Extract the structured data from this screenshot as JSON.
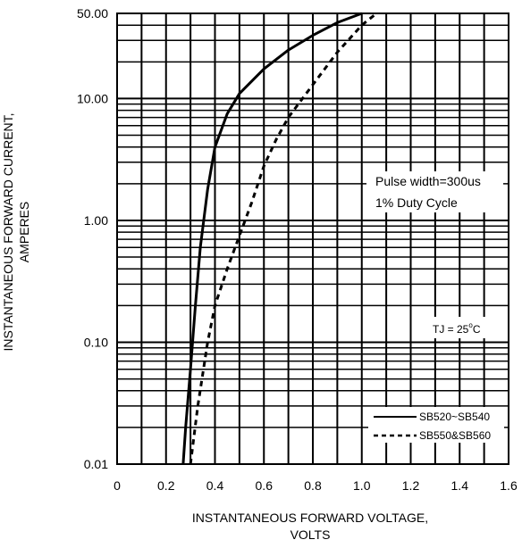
{
  "chart_data": {
    "type": "line",
    "xlabel": [
      "INSTANTANEOUS FORWARD VOLTAGE,",
      "VOLTS"
    ],
    "ylabel": [
      "INSTANTANEOUS FORWARD CURRENT,",
      "AMPERES"
    ],
    "xlim": [
      0,
      1.6
    ],
    "ylim": [
      0.01,
      50
    ],
    "yscale": "log",
    "grid": true,
    "x_ticks": [
      "0",
      "0.2",
      "0.4",
      "0.6",
      "0.8",
      "1.0",
      "1.2",
      "1.4",
      "1.6"
    ],
    "y_ticks": [
      "0.01",
      "0.10",
      "1.00",
      "10.00",
      "50.00"
    ],
    "annotations": {
      "pulse": "Pulse width=300us",
      "duty": "1% Duty Cycle",
      "tj_main": "TJ = 25",
      "tj_sup": "o",
      "tj_unit": "C"
    },
    "legend_position": "bottom-right",
    "series": [
      {
        "name": "SB520~SB540",
        "style": "solid",
        "x": [
          0.27,
          0.28,
          0.3,
          0.32,
          0.34,
          0.37,
          0.4,
          0.45,
          0.5,
          0.6,
          0.7,
          0.8,
          0.9,
          1.0
        ],
        "y": [
          0.01,
          0.02,
          0.06,
          0.2,
          0.6,
          1.8,
          4.0,
          7.5,
          11.0,
          17.5,
          25.0,
          33.0,
          42.0,
          50.0
        ]
      },
      {
        "name": "SB550&SB560",
        "style": "dashed",
        "x": [
          0.3,
          0.33,
          0.37,
          0.4,
          0.45,
          0.5,
          0.55,
          0.6,
          0.65,
          0.7,
          0.8,
          0.9,
          1.0,
          1.06
        ],
        "y": [
          0.01,
          0.03,
          0.1,
          0.2,
          0.4,
          0.75,
          1.4,
          2.8,
          4.6,
          7.0,
          13.0,
          24.0,
          40.0,
          50.0
        ]
      }
    ]
  }
}
